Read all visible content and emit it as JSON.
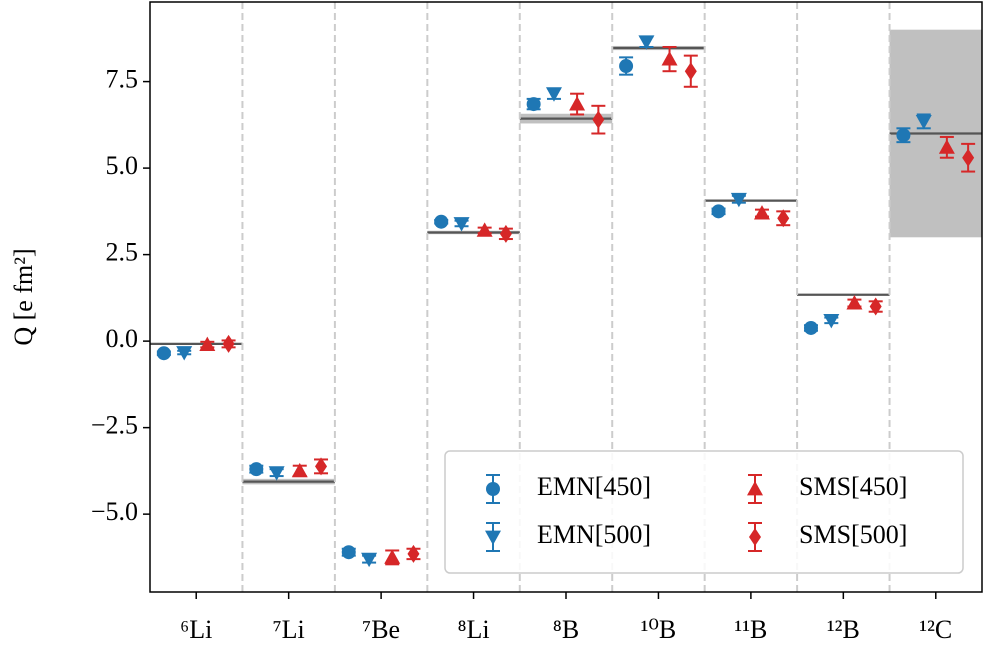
{
  "chart_data": {
    "type": "errorbar",
    "ylabel": "Q [e fm²]",
    "categories": [
      "⁶Li",
      "⁷Li",
      "⁷Be",
      "⁸Li",
      "⁸B",
      "¹⁰B",
      "¹¹B",
      "¹²B",
      "¹²C"
    ],
    "ylim": [
      -7.25,
      9.8
    ],
    "yticks": [
      {
        "value": -5.0,
        "label": "−5.0"
      },
      {
        "value": -2.5,
        "label": "−2.5"
      },
      {
        "value": 0.0,
        "label": "0.0"
      },
      {
        "value": 2.5,
        "label": "2.5"
      },
      {
        "value": 5.0,
        "label": "5.0"
      },
      {
        "value": 7.5,
        "label": "7.5"
      }
    ],
    "legend": "lower right",
    "experiment": {
      "color": "#555555",
      "band_color": "#c0c0c0",
      "values": [
        -0.08,
        -4.06,
        null,
        3.14,
        6.43,
        8.47,
        4.06,
        1.34,
        6.0
      ],
      "errors": [
        0.02,
        0.08,
        null,
        0.05,
        0.14,
        0.06,
        0.03,
        0.02,
        3.0
      ]
    },
    "series": [
      {
        "name": "EMN[450]",
        "color": "#1f77b4",
        "marker": "circle",
        "values": [
          -0.35,
          -3.7,
          -6.1,
          3.45,
          6.85,
          7.95,
          3.75,
          0.38,
          5.95
        ],
        "errors": [
          0.05,
          0.1,
          0.1,
          0.05,
          0.15,
          0.25,
          0.08,
          0.08,
          0.2
        ]
      },
      {
        "name": "EMN[500]",
        "color": "#1f77b4",
        "marker": "triangle-down",
        "values": [
          -0.33,
          -3.8,
          -6.3,
          3.4,
          7.15,
          8.65,
          4.1,
          0.6,
          6.35
        ],
        "errors": [
          0.05,
          0.1,
          0.1,
          0.08,
          0.15,
          0.15,
          0.1,
          0.08,
          0.2
        ]
      },
      {
        "name": "SMS[450]",
        "color": "#d62728",
        "marker": "triangle-up",
        "values": [
          -0.1,
          -3.75,
          -6.25,
          3.2,
          6.85,
          8.15,
          3.7,
          1.1,
          5.6
        ],
        "errors": [
          0.08,
          0.15,
          0.2,
          0.08,
          0.3,
          0.35,
          0.1,
          0.1,
          0.3
        ]
      },
      {
        "name": "SMS[500]",
        "color": "#d62728",
        "marker": "diamond",
        "values": [
          -0.08,
          -3.62,
          -6.15,
          3.1,
          6.4,
          7.8,
          3.55,
          1.0,
          5.3
        ],
        "errors": [
          0.1,
          0.2,
          0.15,
          0.15,
          0.4,
          0.45,
          0.2,
          0.15,
          0.4
        ]
      }
    ]
  }
}
